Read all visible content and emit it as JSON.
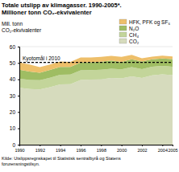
{
  "chart_data": {
    "type": "area",
    "stacked": true,
    "title": [
      "Totale utslipp av klimagasser. 1990-2005*.",
      "Millioner tonn CO₂-ekvivalenter"
    ],
    "y_label": [
      "Mill. tonn",
      "CO₂-ekvivalenter"
    ],
    "source": [
      "Kilde: Utslippsregnskapet til Statistisk sentralbyrå og Statens",
      "forurensningstilsyn."
    ],
    "x": [
      1990,
      1991,
      1992,
      1993,
      1994,
      1995,
      1996,
      1997,
      1998,
      1999,
      2000,
      2001,
      2002,
      2003,
      2004,
      2005
    ],
    "xlim": [
      1990,
      2005
    ],
    "xticks": [
      1990,
      1992,
      1994,
      1996,
      1998,
      2000,
      2002,
      2004,
      2005
    ],
    "ylim": [
      0,
      60
    ],
    "yticks": [
      0,
      10,
      20,
      30,
      40,
      50,
      60
    ],
    "grid": true,
    "legend": "top-right",
    "series": [
      {
        "name": "CO₂",
        "color": "#d6dbbd",
        "values": [
          34.8,
          34.0,
          33.8,
          35.2,
          36.9,
          37.0,
          39.6,
          39.8,
          40.0,
          40.8,
          40.6,
          41.8,
          40.8,
          42.4,
          43.0,
          42.6
        ]
      },
      {
        "name": "CH₄",
        "color": "#c3d59a",
        "values": [
          5.6,
          5.6,
          5.7,
          5.8,
          5.9,
          5.9,
          5.9,
          5.8,
          5.8,
          5.7,
          5.5,
          5.6,
          5.4,
          5.3,
          5.2,
          5.1
        ]
      },
      {
        "name": "N₂O",
        "color": "#9fbd63",
        "values": [
          5.4,
          5.2,
          4.5,
          4.7,
          4.8,
          4.7,
          4.8,
          4.8,
          5.0,
          5.0,
          4.6,
          4.8,
          4.7,
          4.5,
          4.6,
          4.7
        ]
      },
      {
        "name": "HFK, PFK og SF₆",
        "color": "#eebf6a",
        "values": [
          4.5,
          4.2,
          3.5,
          3.4,
          3.3,
          3.1,
          3.1,
          3.0,
          2.9,
          2.8,
          3.0,
          2.7,
          2.0,
          1.6,
          1.7,
          1.6
        ]
      }
    ],
    "annotations": [
      {
        "text": "Kyotomål i 2010",
        "y": 50.3
      }
    ]
  }
}
